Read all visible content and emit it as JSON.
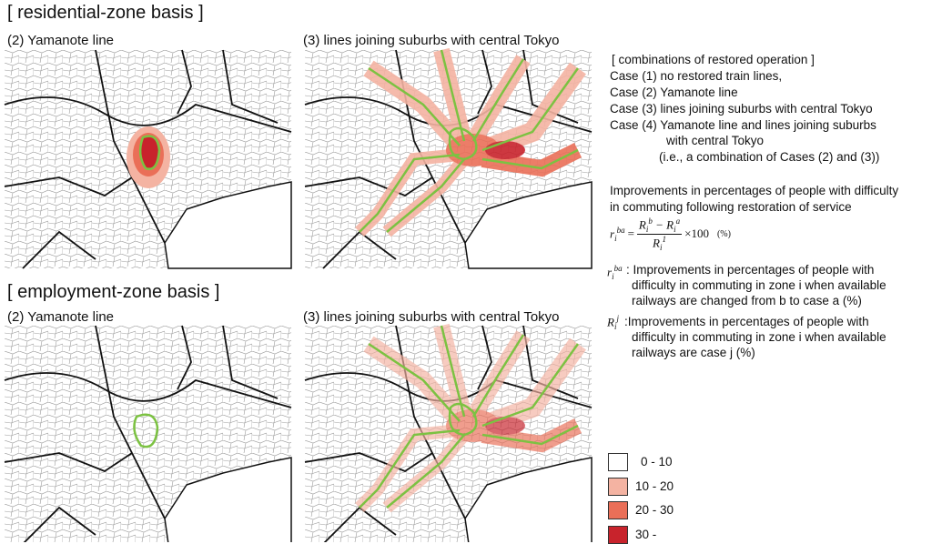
{
  "sections": [
    {
      "title": "[ residential-zone basis ]",
      "panels": [
        {
          "label": "(2) Yamanote line"
        },
        {
          "label": "(3) lines joining suburbs with central Tokyo"
        }
      ]
    },
    {
      "title": "[ employment-zone basis ]",
      "panels": [
        {
          "label": "(2) Yamanote line"
        },
        {
          "label": "(3) lines joining suburbs with central Tokyo"
        }
      ]
    }
  ],
  "notes": {
    "combinations_title": "[ combinations of restored operation ]",
    "cases": [
      "Case (1) no restored train lines,",
      "Case (2) Yamanote line",
      "Case (3) lines joining suburbs with central Tokyo",
      "Case (4) Yamanote line and lines joining suburbs",
      "with central Tokyo",
      "(i.e., a combination of Cases (2) and (3))"
    ],
    "improvement": [
      "Improvements in percentages of people with difficulty",
      "in commuting following restoration of service"
    ],
    "formula": {
      "lhs": "r",
      "lhs_sub": "i",
      "lhs_sup": "ba",
      "equals": "=",
      "num": "R",
      "num_sub1": "i",
      "num_sup1": "b",
      "minus": "− R",
      "num_sub2": "i",
      "num_sup2": "a",
      "den": "R",
      "den_sub": "i",
      "den_sup": "1",
      "times": "×100",
      "unit": "(%)"
    },
    "def_r": {
      "symbol": "r",
      "sub": "i",
      "sup": "ba",
      "lines": [
        ": Improvements in percentages of people with",
        "difficulty in commuting in zone i when available",
        "railways are changed from b to case a (%)"
      ]
    },
    "def_R": {
      "symbol": "R",
      "sub": "i",
      "sup": "j",
      "lines": [
        ":Improvements in percentages of people with",
        "difficulty in commuting in zone i when available",
        "railways are case j (%)"
      ]
    }
  },
  "legend": [
    {
      "label": "0 - 10",
      "color": "#ffffff"
    },
    {
      "label": "10 - 20",
      "color": "#f4b3a2"
    },
    {
      "label": "20 - 30",
      "color": "#ea6f58"
    },
    {
      "label": "30 -",
      "color": "#c8232c"
    }
  ]
}
